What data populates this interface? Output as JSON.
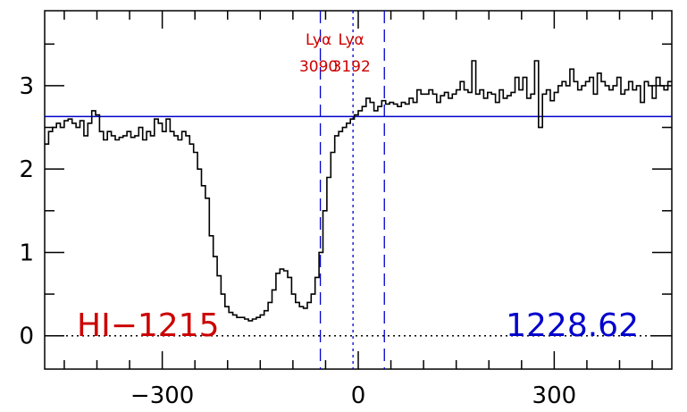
{
  "chart_data": {
    "type": "line",
    "title": "",
    "xlabel": "",
    "ylabel": "",
    "xlim": [
      -480,
      480
    ],
    "ylim": [
      -0.4,
      3.9
    ],
    "x_ticks": [
      -300,
      0,
      300
    ],
    "x_tick_labels": [
      "−300",
      "0",
      "300"
    ],
    "y_ticks": [
      0,
      1,
      2,
      3
    ],
    "y_tick_labels": [
      "0",
      "1",
      "2",
      "3"
    ],
    "grid": false,
    "series": [
      {
        "style": "steps",
        "color": "#000000",
        "x": [
          -480,
          -474,
          -468,
          -462,
          -456,
          -450,
          -444,
          -438,
          -432,
          -426,
          -420,
          -414,
          -408,
          -402,
          -396,
          -390,
          -384,
          -378,
          -372,
          -366,
          -360,
          -354,
          -348,
          -342,
          -336,
          -330,
          -324,
          -318,
          -312,
          -306,
          -300,
          -294,
          -288,
          -282,
          -276,
          -270,
          -264,
          -258,
          -252,
          -246,
          -240,
          -234,
          -228,
          -222,
          -216,
          -210,
          -204,
          -198,
          -192,
          -186,
          -180,
          -174,
          -168,
          -162,
          -156,
          -150,
          -144,
          -138,
          -132,
          -126,
          -120,
          -114,
          -108,
          -102,
          -96,
          -90,
          -84,
          -78,
          -72,
          -66,
          -60,
          -54,
          -48,
          -42,
          -36,
          -30,
          -24,
          -18,
          -12,
          -6,
          0,
          6,
          12,
          18,
          24,
          30,
          36,
          42,
          48,
          54,
          60,
          66,
          72,
          78,
          84,
          90,
          96,
          102,
          108,
          114,
          120,
          126,
          132,
          138,
          144,
          150,
          156,
          162,
          168,
          174,
          180,
          186,
          192,
          198,
          204,
          210,
          216,
          222,
          228,
          234,
          240,
          246,
          252,
          258,
          264,
          270,
          276,
          282,
          288,
          294,
          300,
          306,
          312,
          318,
          324,
          330,
          336,
          342,
          348,
          354,
          360,
          366,
          372,
          378,
          384,
          390,
          396,
          402,
          408,
          414,
          420,
          426,
          432,
          438,
          444,
          450,
          456,
          462,
          468,
          474
        ],
        "y": [
          2.3,
          2.45,
          2.5,
          2.55,
          2.5,
          2.58,
          2.6,
          2.55,
          2.5,
          2.58,
          2.4,
          2.55,
          2.7,
          2.65,
          2.45,
          2.35,
          2.45,
          2.4,
          2.35,
          2.38,
          2.4,
          2.45,
          2.38,
          2.4,
          2.5,
          2.35,
          2.45,
          2.4,
          2.6,
          2.55,
          2.45,
          2.6,
          2.45,
          2.4,
          2.35,
          2.45,
          2.4,
          2.3,
          2.2,
          2.0,
          1.8,
          1.65,
          1.2,
          0.95,
          0.72,
          0.5,
          0.35,
          0.28,
          0.25,
          0.22,
          0.22,
          0.2,
          0.18,
          0.2,
          0.22,
          0.25,
          0.3,
          0.4,
          0.55,
          0.75,
          0.8,
          0.78,
          0.7,
          0.5,
          0.4,
          0.35,
          0.33,
          0.4,
          0.5,
          0.7,
          1.0,
          1.5,
          1.9,
          2.2,
          2.4,
          2.45,
          2.5,
          2.55,
          2.6,
          2.65,
          2.7,
          2.75,
          2.85,
          2.8,
          2.7,
          2.75,
          2.82,
          2.78,
          2.8,
          2.78,
          2.75,
          2.8,
          2.78,
          2.85,
          2.8,
          2.95,
          2.9,
          2.9,
          2.95,
          2.9,
          2.8,
          2.88,
          2.92,
          2.85,
          2.9,
          2.95,
          3.05,
          2.95,
          2.92,
          3.3,
          2.9,
          2.95,
          2.85,
          2.92,
          2.9,
          2.8,
          2.95,
          2.85,
          2.88,
          2.92,
          3.1,
          2.95,
          3.1,
          2.85,
          2.9,
          3.3,
          2.5,
          2.9,
          2.95,
          2.82,
          2.92,
          3.0,
          3.05,
          3.0,
          3.2,
          3.05,
          2.95,
          3.0,
          3.05,
          3.1,
          2.9,
          3.15,
          3.05,
          3.0,
          2.95,
          3.0,
          3.1,
          2.9,
          2.95,
          3.05,
          2.95,
          3.0,
          2.8,
          3.05,
          3.0,
          2.85,
          3.1,
          3.0,
          2.95,
          3.05
        ]
      }
    ],
    "continuum_level": 2.63,
    "continuum_color": "#0000cc",
    "zero_line_color": "#000000",
    "vlines": [
      {
        "x": -58,
        "style": "dashed",
        "color": "#0000cc"
      },
      {
        "x": -8,
        "style": "dotted",
        "color": "#0000cc"
      },
      {
        "x": 40,
        "style": "dashed",
        "color": "#0000cc"
      }
    ],
    "annotations": [
      {
        "name": "lya-3090",
        "lines": [
          "Lyα",
          "3090"
        ],
        "x": -58,
        "color": "#cc0000"
      },
      {
        "name": "lya-3192",
        "lines": [
          "Lyα",
          "3192"
        ],
        "x": -8,
        "color": "#cc0000"
      }
    ],
    "line_label": {
      "text": "HI−1215",
      "color": "#cc0000"
    },
    "wavelength_label": {
      "text": "1228.62",
      "color": "#0000cc"
    }
  }
}
